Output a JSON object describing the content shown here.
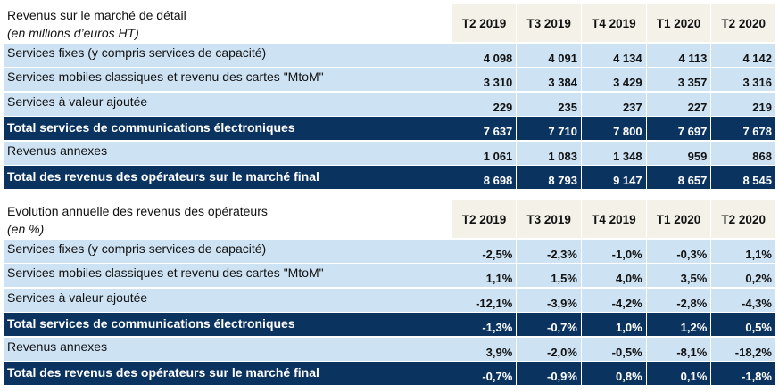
{
  "columns": [
    "T2 2019",
    "T3 2019",
    "T4 2019",
    "T1 2020",
    "T2 2020"
  ],
  "colors": {
    "row_bg": "#cde2f3",
    "total_bg": "#0b3360",
    "header_bg": "#f3f1e8"
  },
  "tables": [
    {
      "title": "Revenus sur le marché de détail",
      "subtitle": "(en millions d’euros HT)",
      "rows": [
        {
          "label": "Services fixes (y compris services de capacité)",
          "total": false,
          "values": [
            "4 098",
            "4 091",
            "4 134",
            "4 113",
            "4 142"
          ]
        },
        {
          "label": "Services mobiles classiques et revenu des cartes \"MtoM\"",
          "total": false,
          "values": [
            "3 310",
            "3 384",
            "3 429",
            "3 357",
            "3 316"
          ]
        },
        {
          "label": "Services à valeur ajoutée",
          "total": false,
          "values": [
            "229",
            "235",
            "237",
            "227",
            "219"
          ]
        },
        {
          "label": "Total services de communications électroniques",
          "total": true,
          "values": [
            "7 637",
            "7 710",
            "7 800",
            "7 697",
            "7 678"
          ]
        },
        {
          "label": "Revenus annexes",
          "total": false,
          "values": [
            "1 061",
            "1 083",
            "1 348",
            "959",
            "868"
          ]
        },
        {
          "label": "Total des revenus des opérateurs sur le marché final",
          "total": true,
          "values": [
            "8 698",
            "8 793",
            "9 147",
            "8 657",
            "8 545"
          ]
        }
      ]
    },
    {
      "title": "Evolution annuelle des revenus des opérateurs",
      "subtitle": "(en %)",
      "rows": [
        {
          "label": "Services fixes (y compris services de capacité)",
          "total": false,
          "values": [
            "-2,5%",
            "-2,3%",
            "-1,0%",
            "-0,3%",
            "1,1%"
          ]
        },
        {
          "label": "Services mobiles classiques et revenu des cartes \"MtoM\"",
          "total": false,
          "values": [
            "1,1%",
            "1,5%",
            "4,0%",
            "3,5%",
            "0,2%"
          ]
        },
        {
          "label": "Services à valeur ajoutée",
          "total": false,
          "values": [
            "-12,1%",
            "-3,9%",
            "-4,2%",
            "-2,8%",
            "-4,3%"
          ]
        },
        {
          "label": "Total services de communications électroniques",
          "total": true,
          "values": [
            "-1,3%",
            "-0,7%",
            "1,0%",
            "1,2%",
            "0,5%"
          ]
        },
        {
          "label": "Revenus annexes",
          "total": false,
          "values": [
            "3,9%",
            "-2,0%",
            "-0,5%",
            "-8,1%",
            "-18,2%"
          ]
        },
        {
          "label": "Total des revenus des opérateurs sur le marché final",
          "total": true,
          "values": [
            "-0,7%",
            "-0,9%",
            "0,8%",
            "0,1%",
            "-1,8%"
          ]
        }
      ]
    }
  ]
}
